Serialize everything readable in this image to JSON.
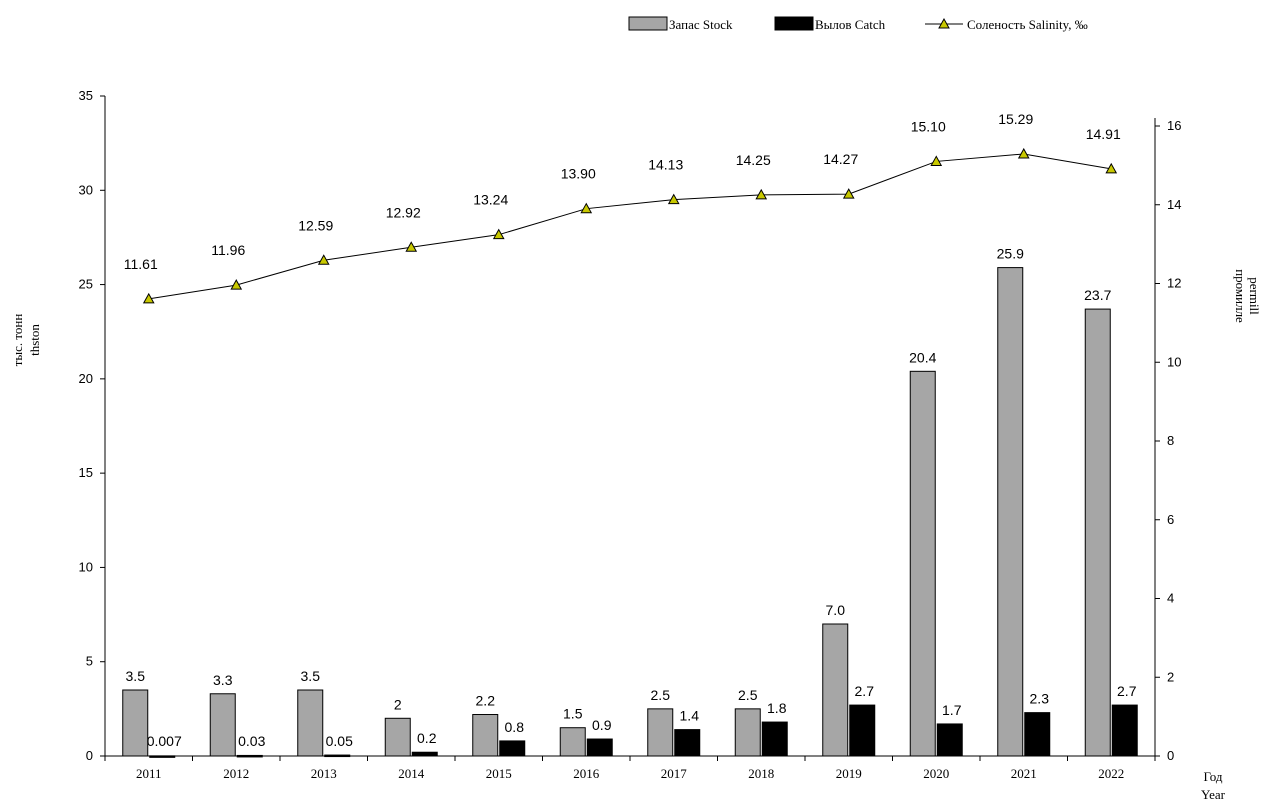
{
  "chart_data": {
    "type": "bar",
    "categories": [
      "2011",
      "2012",
      "2013",
      "2014",
      "2015",
      "2016",
      "2017",
      "2018",
      "2019",
      "2020",
      "2021",
      "2022"
    ],
    "series": [
      {
        "name": "Запас Stock",
        "axis": "left",
        "kind": "bar",
        "color": "#a6a6a6",
        "values": [
          3.5,
          3.3,
          3.5,
          2,
          2.2,
          1.5,
          2.5,
          2.5,
          7.0,
          20.4,
          25.9,
          23.7
        ],
        "labels": [
          "3.5",
          "3.3",
          "3.5",
          "2",
          "2.2",
          "1.5",
          "2.5",
          "2.5",
          "7.0",
          "20.4",
          "25.9",
          "23.7"
        ]
      },
      {
        "name": "Вылов Catch",
        "axis": "left",
        "kind": "bar",
        "color": "#000000",
        "values": [
          0.007,
          0.03,
          0.05,
          0.2,
          0.8,
          0.9,
          1.4,
          1.8,
          2.7,
          1.7,
          2.3,
          2.7
        ],
        "labels": [
          "0.007",
          "0.03",
          "0.05",
          "0.2",
          "0.8",
          "0.9",
          "1.4",
          "1.8",
          "2.7",
          "1.7",
          "2.3",
          "2.7"
        ]
      },
      {
        "name": "Соленость Salinity, ‰",
        "axis": "right",
        "kind": "line",
        "color": "#c8c800",
        "values": [
          11.61,
          11.96,
          12.59,
          12.92,
          13.24,
          13.9,
          14.13,
          14.25,
          14.27,
          15.1,
          15.29,
          14.91
        ],
        "labels": [
          "11.61",
          "11.96",
          "12.59",
          "12.92",
          "13.24",
          "13.90",
          "14.13",
          "14.25",
          "14.27",
          "15.10",
          "15.29",
          "14.91"
        ]
      }
    ],
    "y_left": {
      "label_lines": [
        "тыс. тонн",
        "thston"
      ],
      "ylim": [
        0,
        35
      ],
      "ticks": [
        0,
        5,
        10,
        15,
        20,
        25,
        30,
        35
      ]
    },
    "y_right": {
      "label_lines": [
        "промилле",
        "permill"
      ],
      "ylim": [
        0,
        17
      ],
      "ticks": [
        0,
        2,
        4,
        6,
        8,
        10,
        12,
        14,
        16
      ]
    },
    "x_axis": {
      "label_lines": [
        "Год",
        "Year"
      ]
    },
    "legend_position": "top-right",
    "grid": false
  }
}
